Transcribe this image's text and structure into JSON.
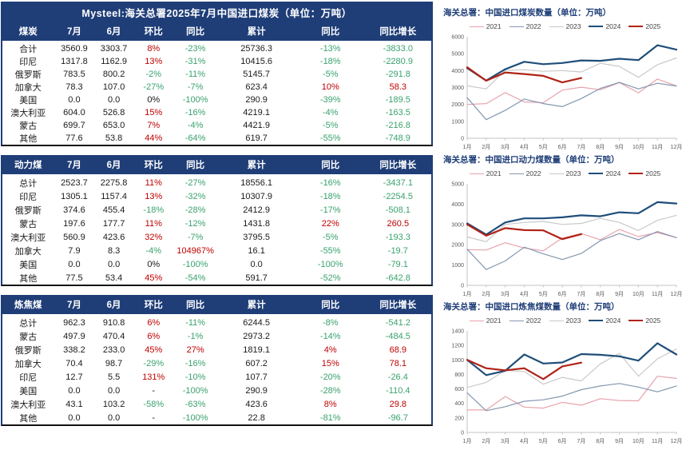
{
  "report_title": "Mysteel:海关总署2025年7月中国进口煤炭（单位：万吨）",
  "colors": {
    "header_navy": "#1F3E78",
    "positive_red": "#C00000",
    "negative_green": "#3AA26E",
    "series_2021": "#E8A3AD",
    "series_2022": "#8497B0",
    "series_2023": "#C9C9C9",
    "series_2024": "#1F4E79",
    "series_2025": "#B02318"
  },
  "tables": [
    {
      "title": "Mysteel:海关总署2025年7月中国进口煤炭（单位：万吨）",
      "columns": [
        "煤炭",
        "7月",
        "6月",
        "环比",
        "同比",
        "累计",
        "同比",
        "同比增长"
      ],
      "rows": [
        [
          "合计",
          "3560.9",
          "3303.7",
          "8%",
          "-23%",
          "25736.3",
          "-13%",
          "-3833.0"
        ],
        [
          "印尼",
          "1317.8",
          "1162.9",
          "13%",
          "-31%",
          "10415.6",
          "-18%",
          "-2280.9"
        ],
        [
          "俄罗斯",
          "783.5",
          "800.2",
          "-2%",
          "-11%",
          "5145.7",
          "-5%",
          "-291.8"
        ],
        [
          "加拿大",
          "78.3",
          "107.0",
          "-27%",
          "-7%",
          "623.4",
          "10%",
          "58.3"
        ],
        [
          "美国",
          "0.0",
          "0.0",
          "0%",
          "-100%",
          "290.9",
          "-39%",
          "-189.5"
        ],
        [
          "澳大利亚",
          "604.0",
          "526.8",
          "15%",
          "-16%",
          "4219.1",
          "-4%",
          "-163.5"
        ],
        [
          "蒙古",
          "699.7",
          "653.0",
          "7%",
          "-4%",
          "4421.9",
          "-5%",
          "-216.8"
        ],
        [
          "其他",
          "77.6",
          "53.8",
          "44%",
          "-64%",
          "619.7",
          "-55%",
          "-748.9"
        ]
      ]
    },
    {
      "title": "",
      "columns": [
        "动力煤",
        "7月",
        "6月",
        "环比",
        "同比",
        "累计",
        "同比",
        "同比增长"
      ],
      "rows": [
        [
          "总计",
          "2523.7",
          "2275.8",
          "11%",
          "-27%",
          "18556.1",
          "-16%",
          "-3437.1"
        ],
        [
          "印尼",
          "1305.1",
          "1157.4",
          "13%",
          "-32%",
          "10307.9",
          "-18%",
          "-2254.5"
        ],
        [
          "俄罗斯",
          "374.6",
          "455.4",
          "-18%",
          "-28%",
          "2412.9",
          "-17%",
          "-508.1"
        ],
        [
          "蒙古",
          "197.6",
          "177.7",
          "11%",
          "-12%",
          "1431.8",
          "22%",
          "260.5"
        ],
        [
          "澳大利亚",
          "560.9",
          "423.6",
          "32%",
          "-7%",
          "3795.5",
          "-5%",
          "-193.3"
        ],
        [
          "加拿大",
          "7.9",
          "8.3",
          "-4%",
          "104967%",
          "16.1",
          "-55%",
          "-19.7"
        ],
        [
          "美国",
          "0.0",
          "0.0",
          "0%",
          "-100%",
          "0.0",
          "-100%",
          "-79.1"
        ],
        [
          "其他",
          "77.5",
          "53.4",
          "45%",
          "-54%",
          "591.7",
          "-52%",
          "-642.8"
        ]
      ]
    },
    {
      "title": "",
      "columns": [
        "炼焦煤",
        "7月",
        "6月",
        "环比",
        "同比",
        "累计",
        "同比",
        "同比增长"
      ],
      "rows": [
        [
          "总计",
          "962.3",
          "910.8",
          "6%",
          "-11%",
          "6244.5",
          "-8%",
          "-541.2"
        ],
        [
          "蒙古",
          "497.9",
          "470.4",
          "6%",
          "-1%",
          "2973.2",
          "-14%",
          "-484.5"
        ],
        [
          "俄罗斯",
          "338.2",
          "233.0",
          "45%",
          "27%",
          "1819.1",
          "4%",
          "68.9"
        ],
        [
          "加拿大",
          "70.4",
          "98.7",
          "-29%",
          "-16%",
          "607.2",
          "15%",
          "78.1"
        ],
        [
          "印尼",
          "12.7",
          "5.5",
          "131%",
          "-10%",
          "107.7",
          "-20%",
          "-26.4"
        ],
        [
          "美国",
          "0.0",
          "0.0",
          "-",
          "-100%",
          "290.9",
          "-28%",
          "-110.4"
        ],
        [
          "澳大利亚",
          "43.1",
          "103.2",
          "-58%",
          "-63%",
          "423.6",
          "8%",
          "29.8"
        ],
        [
          "其他",
          "0.0",
          "0.0",
          "-",
          "-100%",
          "22.8",
          "-81%",
          "-96.7"
        ]
      ]
    }
  ],
  "chart_data": [
    {
      "type": "line",
      "title": "海关总署：中国进口煤炭数量（单位：万吨）",
      "x_categories": [
        "1月",
        "2月",
        "3月",
        "4月",
        "5月",
        "6月",
        "7月",
        "8月",
        "9月",
        "10月",
        "11月",
        "12月"
      ],
      "ylim": [
        0,
        6000
      ],
      "ystep": 1000,
      "grid": false,
      "legend_position": "top",
      "series": [
        {
          "name": "2021",
          "color": "#E8A3AD",
          "width": 1.2,
          "values": [
            2000,
            2050,
            2700,
            2150,
            2100,
            2850,
            3020,
            2870,
            3290,
            2690,
            3500,
            3100
          ]
        },
        {
          "name": "2022",
          "color": "#8497B0",
          "width": 1.2,
          "values": [
            2400,
            1100,
            1650,
            2320,
            2050,
            1870,
            2350,
            2950,
            3300,
            2920,
            3250,
            3090
          ]
        },
        {
          "name": "2023",
          "color": "#C9C9C9",
          "width": 1.2,
          "values": [
            3100,
            2920,
            4020,
            4050,
            3960,
            4000,
            3920,
            4430,
            4250,
            3600,
            4350,
            4750
          ]
        },
        {
          "name": "2024",
          "color": "#1F4E79",
          "width": 2.2,
          "values": [
            4150,
            3410,
            4080,
            4520,
            4380,
            4450,
            4600,
            4580,
            4700,
            4620,
            5500,
            5240
          ]
        },
        {
          "name": "2025",
          "color": "#B02318",
          "width": 2.2,
          "values": [
            4200,
            3400,
            3890,
            3800,
            3690,
            3304,
            3561
          ]
        }
      ]
    },
    {
      "type": "line",
      "title": "海关总署：中国进口动力煤数量（单位：万吨）",
      "x_categories": [
        "1月",
        "2月",
        "3月",
        "4月",
        "5月",
        "6月",
        "7月",
        "8月",
        "9月",
        "10月",
        "11月",
        "12月"
      ],
      "ylim": [
        0,
        5000
      ],
      "ystep": 1000,
      "grid": false,
      "legend_position": "top",
      "series": [
        {
          "name": "2021",
          "color": "#E8A3AD",
          "width": 1.2,
          "values": [
            1760,
            1740,
            2100,
            1840,
            1700,
            2330,
            2550,
            2250,
            2750,
            2400,
            2600,
            2350
          ]
        },
        {
          "name": "2022",
          "color": "#8497B0",
          "width": 1.2,
          "values": [
            1780,
            780,
            1200,
            1880,
            1550,
            1270,
            1570,
            2200,
            2550,
            2250,
            2650,
            2350
          ]
        },
        {
          "name": "2023",
          "color": "#C9C9C9",
          "width": 1.2,
          "values": [
            2380,
            2150,
            3000,
            3100,
            3150,
            3000,
            3050,
            3300,
            3100,
            2700,
            3200,
            3450
          ]
        },
        {
          "name": "2024",
          "color": "#1F4E79",
          "width": 2.2,
          "values": [
            3050,
            2500,
            3100,
            3300,
            3300,
            3350,
            3450,
            3400,
            3600,
            3550,
            4100,
            4030
          ]
        },
        {
          "name": "2025",
          "color": "#B02318",
          "width": 2.2,
          "values": [
            3000,
            2450,
            2820,
            2720,
            2710,
            2276,
            2524
          ]
        }
      ]
    },
    {
      "type": "line",
      "title": "海关总署：中国进口炼焦煤数量（单位：万吨）",
      "x_categories": [
        "1月",
        "2月",
        "3月",
        "4月",
        "5月",
        "6月",
        "7月",
        "8月",
        "9月",
        "10月",
        "11月",
        "12月"
      ],
      "ylim": [
        0,
        1400
      ],
      "ystep": 200,
      "grid": false,
      "legend_position": "top",
      "series": [
        {
          "name": "2021",
          "color": "#E8A3AD",
          "width": 1.2,
          "values": [
            310,
            310,
            495,
            350,
            335,
            415,
            375,
            465,
            440,
            435,
            775,
            745
          ]
        },
        {
          "name": "2022",
          "color": "#8497B0",
          "width": 1.2,
          "values": [
            545,
            300,
            355,
            430,
            450,
            500,
            590,
            640,
            675,
            625,
            560,
            640
          ]
        },
        {
          "name": "2023",
          "color": "#C9C9C9",
          "width": 1.2,
          "values": [
            620,
            690,
            855,
            840,
            665,
            760,
            710,
            945,
            1090,
            775,
            1015,
            1150
          ]
        },
        {
          "name": "2024",
          "color": "#1F4E79",
          "width": 2.2,
          "values": [
            1000,
            790,
            850,
            1075,
            950,
            965,
            1080,
            1070,
            1050,
            990,
            1230,
            1075
          ]
        },
        {
          "name": "2025",
          "color": "#B02318",
          "width": 2.2,
          "values": [
            1000,
            885,
            855,
            885,
            735,
            911,
            962
          ]
        }
      ]
    }
  ]
}
